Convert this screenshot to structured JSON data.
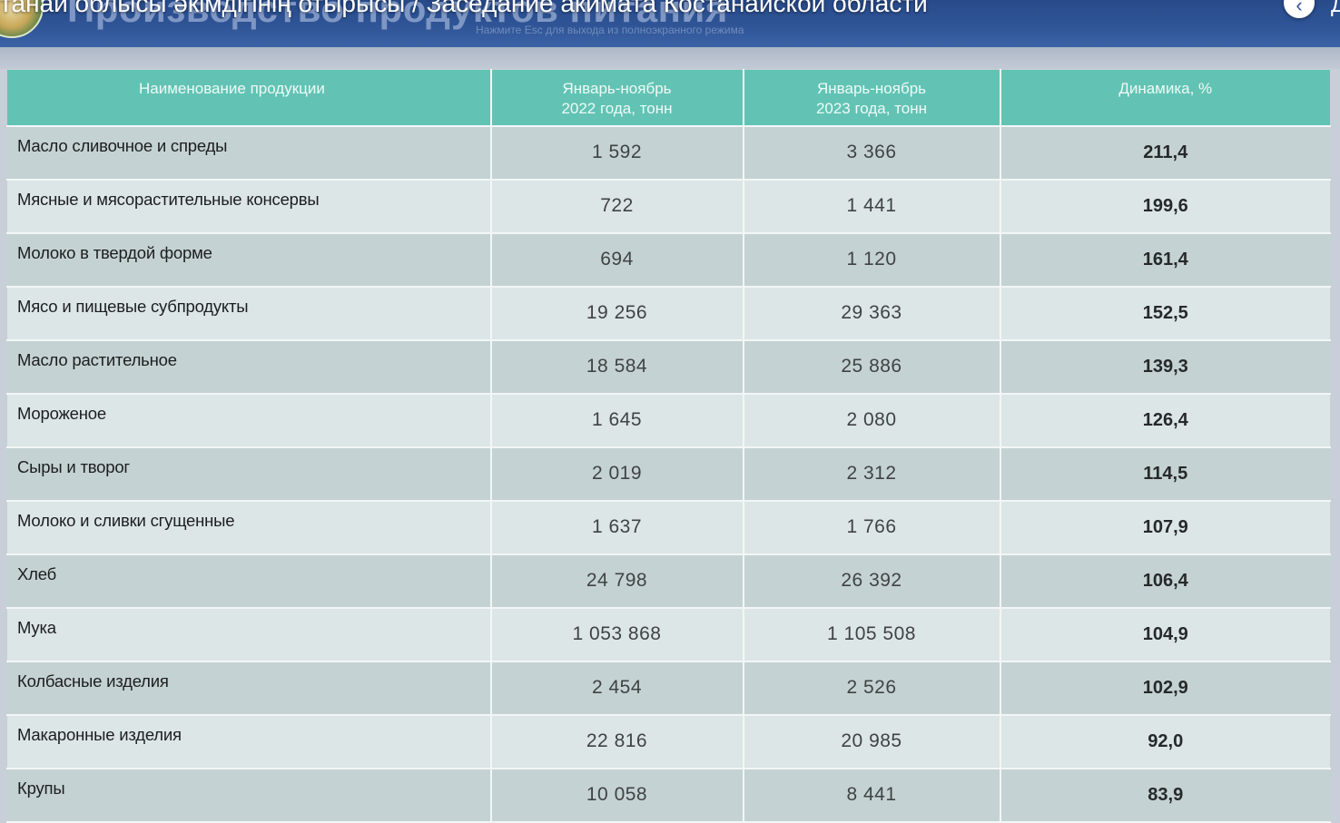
{
  "video": {
    "title": "танай облысы әкімдігінің отырысы / Заседание акимата Костанайской области",
    "exit_hint": "Нажмите Esc для выхода из полноэкранного режима",
    "edge_char": "Д"
  },
  "slide": {
    "title": "Производство продуктов питания"
  },
  "table": {
    "headers": {
      "name": "Наименование продукции",
      "col2022_line1": "Январь-ноябрь",
      "col2022_line2": "2022 года, тонн",
      "col2023_line1": "Январь-ноябрь",
      "col2023_line2": "2023 года, тонн",
      "dynamics": "Динамика, %"
    },
    "rows": [
      {
        "name": "Масло сливочное и спреды",
        "v2022": "1 592",
        "v2023": "3 366",
        "dynamics": "211,4"
      },
      {
        "name": "Мясные и мясорастительные консервы",
        "v2022": "722",
        "v2023": "1 441",
        "dynamics": "199,6"
      },
      {
        "name": "Молоко в твердой форме",
        "v2022": "694",
        "v2023": "1 120",
        "dynamics": "161,4"
      },
      {
        "name": "Мясо и пищевые субпродукты",
        "v2022": "19 256",
        "v2023": "29 363",
        "dynamics": "152,5"
      },
      {
        "name": "Масло растительное",
        "v2022": "18 584",
        "v2023": "25 886",
        "dynamics": "139,3"
      },
      {
        "name": "Мороженое",
        "v2022": "1 645",
        "v2023": "2 080",
        "dynamics": "126,4"
      },
      {
        "name": "Сыры и творог",
        "v2022": "2 019",
        "v2023": "2 312",
        "dynamics": "114,5"
      },
      {
        "name": "Молоко и сливки сгущенные",
        "v2022": "1 637",
        "v2023": "1 766",
        "dynamics": "107,9"
      },
      {
        "name": "Хлеб",
        "v2022": "24 798",
        "v2023": "26 392",
        "dynamics": "106,4"
      },
      {
        "name": "Мука",
        "v2022": "1 053 868",
        "v2023": "1 105 508",
        "dynamics": "104,9"
      },
      {
        "name": "Колбасные изделия",
        "v2022": "2 454",
        "v2023": "2 526",
        "dynamics": "102,9"
      },
      {
        "name": "Макаронные изделия",
        "v2022": "22 816",
        "v2023": "20 985",
        "dynamics": "92,0"
      },
      {
        "name": "Крупы",
        "v2022": "10 058",
        "v2023": "8 441",
        "dynamics": "83,9"
      }
    ]
  }
}
